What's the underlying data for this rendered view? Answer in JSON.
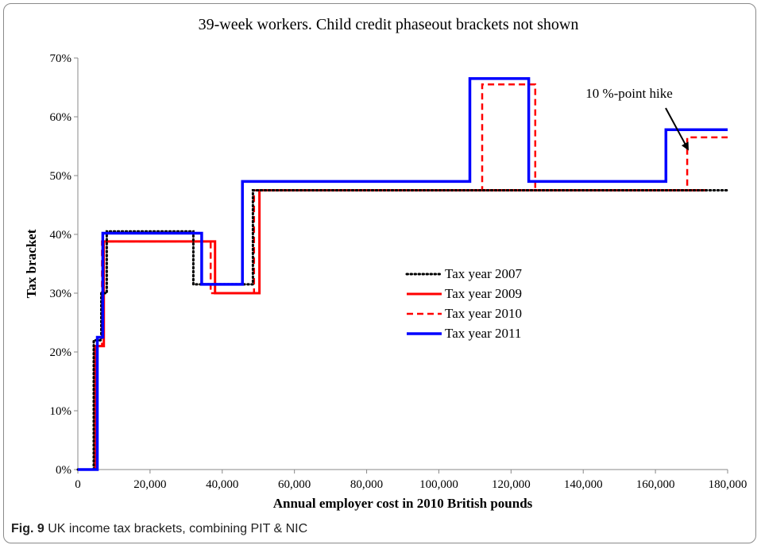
{
  "caption": {
    "label": "Fig. 9",
    "text": "UK income tax brackets, combining PIT & NIC"
  },
  "chart_data": {
    "type": "line",
    "title": "39-week workers.  Child credit phaseout brackets not shown",
    "xlabel": "Annual employer cost in 2010 British pounds",
    "ylabel": "Tax bracket",
    "xlim": [
      0,
      180000
    ],
    "ylim": [
      0,
      70
    ],
    "x_ticks": [
      0,
      20000,
      40000,
      60000,
      80000,
      100000,
      120000,
      140000,
      160000,
      180000
    ],
    "x_tick_labels": [
      "0",
      "20,000",
      "40,000",
      "60,000",
      "80,000",
      "100,000",
      "120,000",
      "140,000",
      "160,000",
      "180,000"
    ],
    "y_ticks": [
      0,
      10,
      20,
      30,
      40,
      50,
      60,
      70
    ],
    "y_tick_labels": [
      "0%",
      "10%",
      "20%",
      "30%",
      "40%",
      "50%",
      "60%",
      "70%"
    ],
    "grid": false,
    "legend_position": "center",
    "series": [
      {
        "name": "Tax year 2007",
        "color": "#000000",
        "style": "dotted",
        "x": [
          0,
          4400,
          4400,
          6500,
          6500,
          8000,
          8000,
          32000,
          32000,
          48500,
          48500,
          180000
        ],
        "y": [
          0,
          0,
          22,
          22,
          30,
          30,
          40.5,
          40.5,
          31.5,
          31.5,
          47.5,
          47.5
        ]
      },
      {
        "name": "Tax year 2009",
        "color": "#ff0000",
        "style": "solid",
        "x": [
          0,
          4800,
          4800,
          6800,
          6800,
          7200,
          7200,
          38000,
          38000,
          50300,
          50300,
          174000
        ],
        "y": [
          0,
          0,
          21,
          21,
          21,
          21,
          38.8,
          38.8,
          30,
          30,
          47.5,
          47.5
        ]
      },
      {
        "name": "Tax year 2010",
        "color": "#ff0000",
        "style": "dashed",
        "x": [
          0,
          4600,
          4600,
          6700,
          6700,
          36800,
          36800,
          48800,
          48800,
          112000,
          112000,
          126700,
          126700,
          168800,
          168800,
          180000
        ],
        "y": [
          0,
          0,
          21,
          21,
          38.8,
          38.8,
          30,
          30,
          47.5,
          47.5,
          65.5,
          65.5,
          47.5,
          47.5,
          56.5,
          56.5
        ]
      },
      {
        "name": "Tax year 2011",
        "color": "#0000ff",
        "style": "solid",
        "x": [
          0,
          5400,
          5400,
          6900,
          6900,
          34300,
          34300,
          45600,
          45600,
          108600,
          108600,
          124900,
          124900,
          162900,
          162900,
          180000
        ],
        "y": [
          0,
          0,
          22.5,
          22.5,
          40.2,
          40.2,
          31.5,
          31.5,
          49,
          49,
          66.5,
          66.5,
          49,
          49,
          57.8,
          57.8
        ]
      }
    ],
    "annotations": [
      {
        "text": "10 %-point hike",
        "target_x": 169000,
        "target_y": 54.5
      }
    ]
  }
}
